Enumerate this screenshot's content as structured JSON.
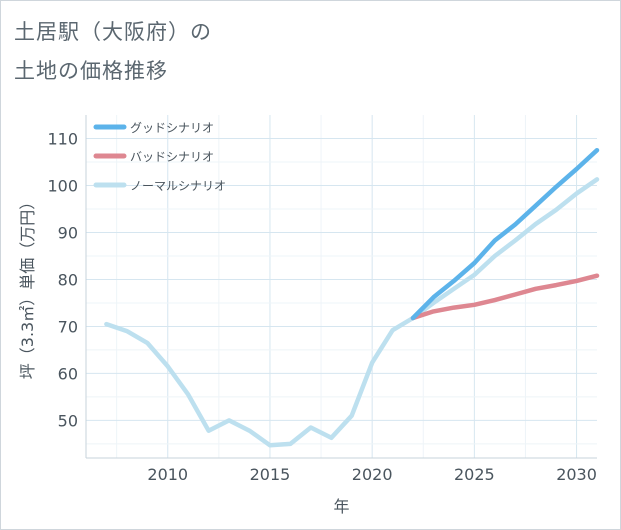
{
  "header": {
    "title_line1": "土居駅（大阪府）の",
    "title_line2": "土地の価格推移"
  },
  "chart_data": {
    "type": "line",
    "xlabel": "年",
    "ylabel": "坪（3.3㎡）単価（万円）",
    "xlim": [
      2006,
      2031
    ],
    "ylim": [
      42,
      115
    ],
    "xticks": [
      2010,
      2015,
      2020,
      2025,
      2030
    ],
    "yticks": [
      50,
      60,
      70,
      80,
      90,
      100,
      110
    ],
    "legend_position": "top-left",
    "series": [
      {
        "name": "グッドシナリオ",
        "color": "#5cb3ea",
        "x": [
          2022,
          2023,
          2024,
          2025,
          2026,
          2027,
          2028,
          2029,
          2030,
          2031
        ],
        "values": [
          71.8,
          76.2,
          79.7,
          83.5,
          88.3,
          91.7,
          95.7,
          99.7,
          103.5,
          107.5
        ]
      },
      {
        "name": "バッドシナリオ",
        "color": "#de8791",
        "x": [
          2022,
          2023,
          2024,
          2025,
          2026,
          2027,
          2028,
          2029,
          2030,
          2031
        ],
        "values": [
          71.8,
          73.2,
          74.0,
          74.6,
          75.6,
          76.8,
          78.0,
          78.8,
          79.7,
          80.8
        ]
      },
      {
        "name": "ノーマルシナリオ",
        "color": "#bde0ef",
        "x": [
          2007,
          2008,
          2009,
          2010,
          2011,
          2012,
          2013,
          2014,
          2015,
          2016,
          2017,
          2018,
          2019,
          2020,
          2021,
          2022,
          2023,
          2024,
          2025,
          2026,
          2027,
          2028,
          2029,
          2030,
          2031
        ],
        "values": [
          70.5,
          69.0,
          66.5,
          61.5,
          55.5,
          47.8,
          50.0,
          47.8,
          44.7,
          45.0,
          48.5,
          46.3,
          51.0,
          62.3,
          69.2,
          71.8,
          75.0,
          78.0,
          81.0,
          85.0,
          88.3,
          91.8,
          94.8,
          98.3,
          101.3
        ]
      }
    ]
  }
}
